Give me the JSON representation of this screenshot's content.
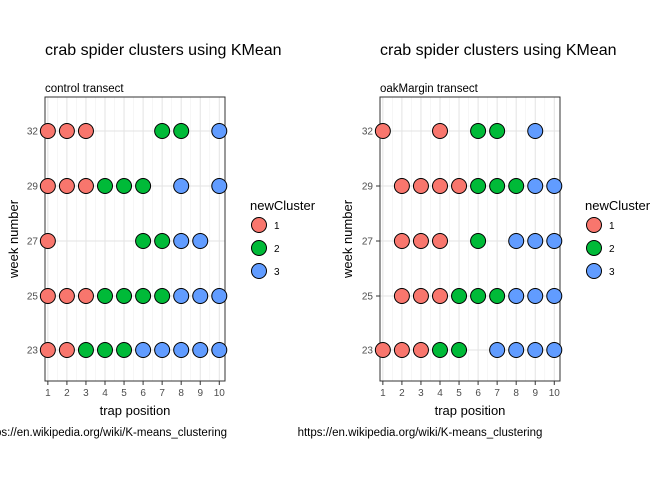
{
  "chart_data": [
    {
      "type": "scatter",
      "title": "crab spider clusters using KMean",
      "subtitle": "control transect",
      "xlabel": "trap position",
      "ylabel": "week number",
      "caption": "https://en.wikipedia.org/wiki/K-means_clustering",
      "x_ticks": [
        "1",
        "2",
        "3",
        "4",
        "5",
        "6",
        "7",
        "8",
        "9",
        "10"
      ],
      "y_ticks": [
        "23",
        "25",
        "27",
        "29",
        "32"
      ],
      "xlim": [
        0.85,
        10.3
      ],
      "y_categories": [
        "23",
        "25",
        "27",
        "29",
        "32"
      ],
      "grid": true,
      "legend_title": "newCluster",
      "legend_position": "right",
      "series": [
        {
          "name": "1",
          "color": "#F8766D",
          "points": [
            [
              1,
              "32"
            ],
            [
              2,
              "32"
            ],
            [
              3,
              "32"
            ],
            [
              1,
              "29"
            ],
            [
              2,
              "29"
            ],
            [
              3,
              "29"
            ],
            [
              1,
              "27"
            ],
            [
              1,
              "25"
            ],
            [
              2,
              "25"
            ],
            [
              3,
              "25"
            ],
            [
              1,
              "23"
            ],
            [
              2,
              "23"
            ]
          ]
        },
        {
          "name": "2",
          "color": "#00BA38",
          "points": [
            [
              7,
              "32"
            ],
            [
              8,
              "32"
            ],
            [
              4,
              "29"
            ],
            [
              5,
              "29"
            ],
            [
              6,
              "29"
            ],
            [
              6,
              "27"
            ],
            [
              7,
              "27"
            ],
            [
              4,
              "25"
            ],
            [
              5,
              "25"
            ],
            [
              6,
              "25"
            ],
            [
              7,
              "25"
            ],
            [
              3,
              "23"
            ],
            [
              4,
              "23"
            ],
            [
              5,
              "23"
            ]
          ]
        },
        {
          "name": "3",
          "color": "#619CFF",
          "points": [
            [
              10,
              "32"
            ],
            [
              8,
              "29"
            ],
            [
              10,
              "29"
            ],
            [
              8,
              "27"
            ],
            [
              9,
              "27"
            ],
            [
              8,
              "25"
            ],
            [
              9,
              "25"
            ],
            [
              10,
              "25"
            ],
            [
              6,
              "23"
            ],
            [
              7,
              "23"
            ],
            [
              8,
              "23"
            ],
            [
              9,
              "23"
            ],
            [
              10,
              "23"
            ]
          ]
        }
      ]
    },
    {
      "type": "scatter",
      "title": "crab spider clusters using KMean",
      "subtitle": "oakMargin transect",
      "xlabel": "trap position",
      "ylabel": "week number",
      "caption": "https://en.wikipedia.org/wiki/K-means_clustering",
      "x_ticks": [
        "1",
        "2",
        "3",
        "4",
        "5",
        "6",
        "7",
        "8",
        "9",
        "10"
      ],
      "y_ticks": [
        "23",
        "25",
        "27",
        "29",
        "32"
      ],
      "xlim": [
        0.85,
        10.3
      ],
      "y_categories": [
        "23",
        "25",
        "27",
        "29",
        "32"
      ],
      "grid": true,
      "legend_title": "newCluster",
      "legend_position": "right",
      "series": [
        {
          "name": "1",
          "color": "#F8766D",
          "points": [
            [
              1,
              "32"
            ],
            [
              4,
              "32"
            ],
            [
              2,
              "29"
            ],
            [
              3,
              "29"
            ],
            [
              4,
              "29"
            ],
            [
              5,
              "29"
            ],
            [
              2,
              "27"
            ],
            [
              3,
              "27"
            ],
            [
              4,
              "27"
            ],
            [
              2,
              "25"
            ],
            [
              3,
              "25"
            ],
            [
              4,
              "25"
            ],
            [
              1,
              "23"
            ],
            [
              2,
              "23"
            ],
            [
              3,
              "23"
            ]
          ]
        },
        {
          "name": "2",
          "color": "#00BA38",
          "points": [
            [
              6,
              "32"
            ],
            [
              7,
              "32"
            ],
            [
              6,
              "29"
            ],
            [
              7,
              "29"
            ],
            [
              8,
              "29"
            ],
            [
              6,
              "27"
            ],
            [
              5,
              "25"
            ],
            [
              6,
              "25"
            ],
            [
              7,
              "25"
            ],
            [
              4,
              "23"
            ],
            [
              5,
              "23"
            ]
          ]
        },
        {
          "name": "3",
          "color": "#619CFF",
          "points": [
            [
              9,
              "32"
            ],
            [
              9,
              "29"
            ],
            [
              10,
              "29"
            ],
            [
              8,
              "27"
            ],
            [
              9,
              "27"
            ],
            [
              10,
              "27"
            ],
            [
              8,
              "25"
            ],
            [
              9,
              "25"
            ],
            [
              10,
              "25"
            ],
            [
              7,
              "23"
            ],
            [
              8,
              "23"
            ],
            [
              9,
              "23"
            ],
            [
              10,
              "23"
            ]
          ]
        }
      ]
    }
  ]
}
